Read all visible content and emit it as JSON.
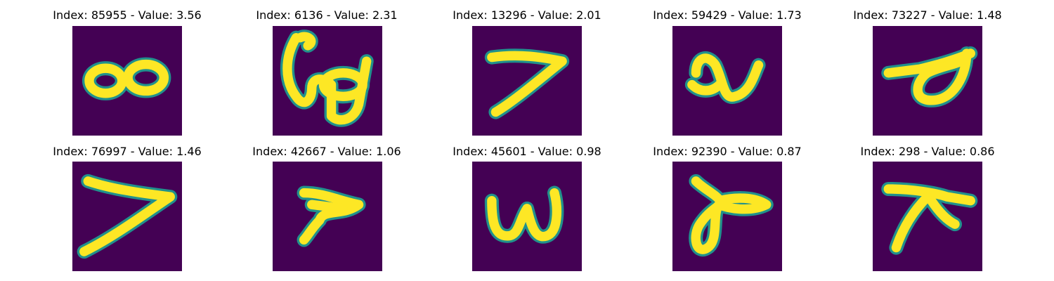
{
  "colors": {
    "background": "#440154",
    "stroke_mid": "#21918c",
    "stroke_core": "#fde725"
  },
  "panels": [
    {
      "title": "Index: 85955 - Value: 3.56",
      "glyph": "figure-eight-glyph"
    },
    {
      "title": "Index: 6136 - Value: 2.31",
      "glyph": "looped-scribble-glyph"
    },
    {
      "title": "Index: 13296 - Value: 2.01",
      "glyph": "seven-like-glyph"
    },
    {
      "title": "Index: 59429 - Value: 1.73",
      "glyph": "wave-glyph"
    },
    {
      "title": "Index: 73227 - Value: 1.48",
      "glyph": "leaf-loop-glyph"
    },
    {
      "title": "Index: 76997 - Value: 1.46",
      "glyph": "angled-seven-glyph"
    },
    {
      "title": "Index: 42667 - Value: 1.06",
      "glyph": "blob-seven-glyph"
    },
    {
      "title": "Index: 45601 - Value: 0.98",
      "glyph": "w-shape-glyph"
    },
    {
      "title": "Index: 92390 - Value: 0.87",
      "glyph": "looped-seven-glyph"
    },
    {
      "title": "Index: 298 - Value: 0.86",
      "glyph": "pi-like-glyph"
    }
  ]
}
